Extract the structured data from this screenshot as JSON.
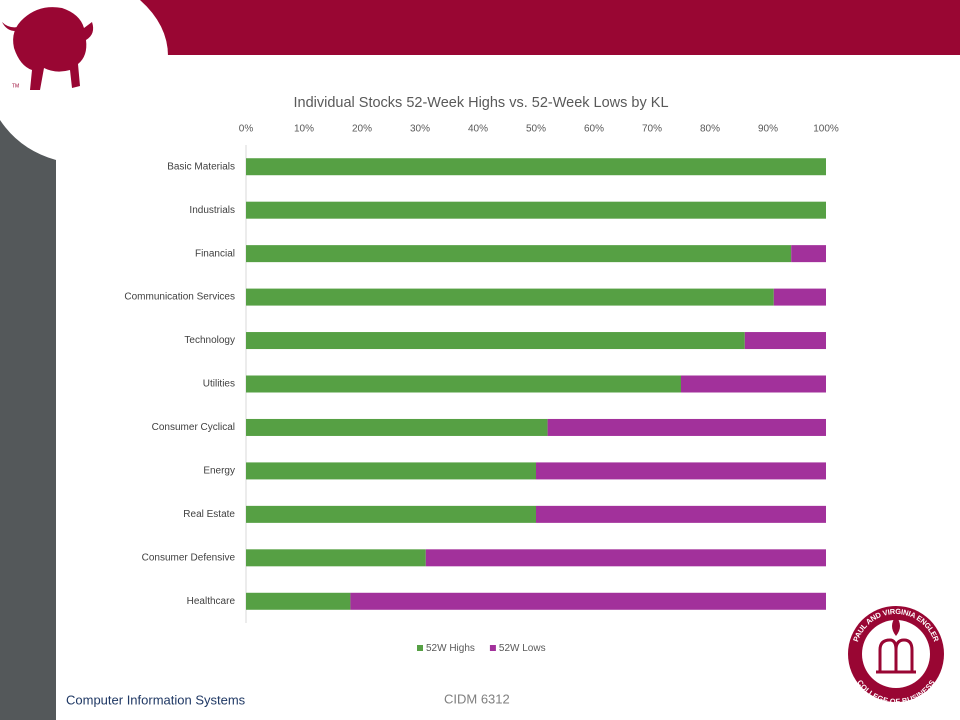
{
  "chart_data": {
    "type": "bar",
    "orientation": "horizontal",
    "stacked": true,
    "title": "Individual Stocks 52-Week Highs vs. 52-Week Lows by KL",
    "categories": [
      "Basic Materials",
      "Industrials",
      "Financial",
      "Communication Services",
      "Technology",
      "Utilities",
      "Consumer Cyclical",
      "Energy",
      "Real Estate",
      "Consumer Defensive",
      "Healthcare"
    ],
    "series": [
      {
        "name": "52W Highs",
        "color": "#56a044",
        "values": [
          100,
          100,
          94,
          91,
          86,
          75,
          52,
          50,
          50,
          31,
          18
        ]
      },
      {
        "name": "52W Lows",
        "color": "#a2319b",
        "values": [
          0,
          0,
          6,
          9,
          14,
          25,
          48,
          50,
          50,
          69,
          82
        ]
      }
    ],
    "xlim": [
      0,
      100
    ],
    "xticks": [
      {
        "value": 0,
        "label": "0%"
      },
      {
        "value": 10,
        "label": "10%"
      },
      {
        "value": 20,
        "label": "20%"
      },
      {
        "value": 30,
        "label": "30%"
      },
      {
        "value": 40,
        "label": "40%"
      },
      {
        "value": 50,
        "label": "50%"
      },
      {
        "value": 60,
        "label": "60%"
      },
      {
        "value": 70,
        "label": "70%"
      },
      {
        "value": 80,
        "label": "80%"
      },
      {
        "value": 90,
        "label": "90%"
      },
      {
        "value": 100,
        "label": "100%"
      }
    ],
    "grid": false,
    "legend": "bottom"
  },
  "logo": {
    "mark": "TM"
  },
  "seal": {
    "top_text": "PAUL AND VIRGINIA ENGLER",
    "bottom_text": "COLLEGE OF BUSINESS"
  },
  "footer": {
    "department": "Computer Information Systems",
    "course": "CIDM 6312"
  }
}
